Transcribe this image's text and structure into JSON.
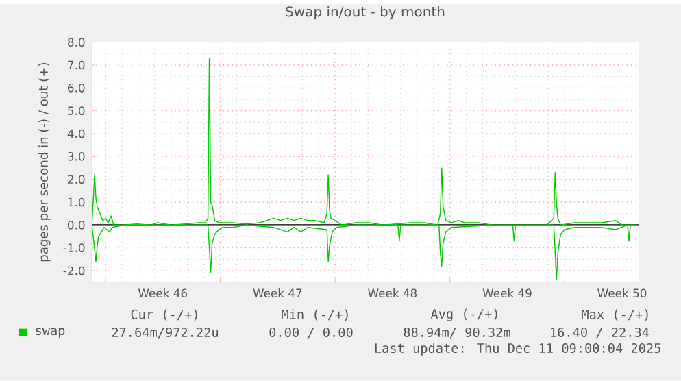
{
  "chart_data": {
    "type": "line",
    "title": "Swap in/out - by month",
    "ylabel": "pages per second in (-) / out (+)",
    "xlim": [
      "2025-11-09T04:00",
      "2025-12-12T12:00"
    ],
    "ylim": [
      -2.5,
      8.0
    ],
    "xticks": [
      {
        "value": "2025-11-10",
        "label": null
      },
      {
        "value": "2025-11-13T12:00",
        "label": "Week 46"
      },
      {
        "value": "2025-11-17",
        "label": null
      },
      {
        "value": "2025-11-20T12:00",
        "label": "Week 47"
      },
      {
        "value": "2025-11-24",
        "label": null
      },
      {
        "value": "2025-11-27T12:00",
        "label": "Week 48"
      },
      {
        "value": "2025-12-01",
        "label": null
      },
      {
        "value": "2025-12-04T12:00",
        "label": "Week 49"
      },
      {
        "value": "2025-12-08",
        "label": null
      },
      {
        "value": "2025-12-11T12:00",
        "label": "Week 50"
      }
    ],
    "yticks": [
      {
        "value": -2,
        "label": "-2.0"
      },
      {
        "value": -1,
        "label": "-1.0"
      },
      {
        "value": 0,
        "label": "0.0"
      },
      {
        "value": 1,
        "label": "1.0"
      },
      {
        "value": 2,
        "label": "2.0"
      },
      {
        "value": 3,
        "label": "3.0"
      },
      {
        "value": 4,
        "label": "4.0"
      },
      {
        "value": 5,
        "label": "5.0"
      },
      {
        "value": 6,
        "label": "6.0"
      },
      {
        "value": 7,
        "label": "7.0"
      },
      {
        "value": 8,
        "label": "8.0"
      }
    ],
    "grid": true,
    "legend": "bottom left",
    "ref_lines": [
      {
        "axis": "y",
        "value": 0,
        "color": "#000000"
      }
    ],
    "series": [
      {
        "name": "swap",
        "color": "#00cc00",
        "x": [
          "2025-11-09T04:00",
          "2025-11-09T06:00",
          "2025-11-09T08:00",
          "2025-11-09T10:00",
          "2025-11-09T12:00",
          "2025-11-09T16:00",
          "2025-11-09T20:00",
          "2025-11-10T00:00",
          "2025-11-10T04:00",
          "2025-11-10T08:00",
          "2025-11-10T12:00",
          "2025-11-11T02:00",
          "2025-11-11T22:00",
          "2025-11-12T18:00",
          "2025-11-13T04:00",
          "2025-11-14T00:00",
          "2025-11-14T20:00",
          "2025-11-15T16:00",
          "2025-11-16T02:00",
          "2025-11-16T06:00",
          "2025-11-16T08:00",
          "2025-11-16T10:00",
          "2025-11-16T12:00",
          "2025-11-16T16:00",
          "2025-11-16T22:00",
          "2025-11-17T18:00",
          "2025-11-18T14:00",
          "2025-11-19T10:00",
          "2025-11-20T06:00",
          "2025-11-20T16:00",
          "2025-11-21T02:00",
          "2025-11-21T12:00",
          "2025-11-21T22:00",
          "2025-11-22T08:00",
          "2025-11-22T18:00",
          "2025-11-23T08:00",
          "2025-11-23T12:00",
          "2025-11-23T14:00",
          "2025-11-23T16:00",
          "2025-11-23T18:00",
          "2025-11-24T00:00",
          "2025-11-24T10:00",
          "2025-11-25T06:00",
          "2025-11-26T02:00",
          "2025-11-26T22:00",
          "2025-11-27T18:00",
          "2025-11-28T14:00",
          "2025-11-29T10:00",
          "2025-11-30T06:00",
          "2025-11-30T10:00",
          "2025-11-30T12:00",
          "2025-11-30T14:00",
          "2025-11-30T18:00",
          "2025-12-01T02:00",
          "2025-12-01T12:00",
          "2025-12-01T22:00",
          "2025-12-02T18:00",
          "2025-12-03T14:00",
          "2025-12-04T10:00",
          "2025-12-05T06:00",
          "2025-12-06T02:00",
          "2025-12-06T22:00",
          "2025-12-07T08:00",
          "2025-12-07T10:00",
          "2025-12-07T12:00",
          "2025-12-07T14:00",
          "2025-12-07T18:00",
          "2025-12-08T14:00",
          "2025-12-09T10:00",
          "2025-12-10T06:00",
          "2025-12-11T02:00",
          "2025-12-11T12:00",
          "2025-12-11T22:00",
          "2025-12-12T08:00",
          null,
          "2025-11-09T04:00",
          "2025-11-09T08:00",
          "2025-11-09T10:00",
          "2025-11-09T12:00",
          "2025-11-09T14:00",
          "2025-11-09T18:00",
          "2025-11-09T22:00",
          "2025-11-10T02:00",
          "2025-11-10T06:00",
          "2025-11-10T10:00",
          "2025-11-11T02:00",
          "2025-11-16T06:00",
          "2025-11-16T08:00",
          "2025-11-16T10:00",
          "2025-11-16T12:00",
          "2025-11-16T16:00",
          "2025-11-16T22:00",
          "2025-11-17T04:00",
          "2025-11-17T18:00",
          "2025-11-18T14:00",
          "2025-11-20T06:00",
          "2025-11-21T02:00",
          "2025-11-21T12:00",
          "2025-11-21T22:00",
          "2025-11-22T08:00",
          "2025-11-23T12:00",
          "2025-11-23T14:00",
          "2025-11-23T16:00",
          "2025-11-23T20:00",
          "2025-11-24T02:00",
          "2025-11-25T06:00",
          "2025-11-27T20:00",
          "2025-11-27T22:00",
          "2025-11-28T00:00",
          "2025-11-30T08:00",
          "2025-11-30T10:00",
          "2025-11-30T12:00",
          "2025-11-30T14:00",
          "2025-11-30T18:00",
          "2025-12-01T02:00",
          "2025-12-03T14:00",
          "2025-12-04T20:00",
          "2025-12-04T22:00",
          "2025-12-05T00:00",
          "2025-12-07T08:00",
          "2025-12-07T10:00",
          "2025-12-07T12:00",
          "2025-12-07T14:00",
          "2025-12-07T18:00",
          "2025-12-08T00:00",
          "2025-12-08T14:00",
          "2025-12-10T06:00",
          "2025-12-11T02:00",
          "2025-12-11T20:00",
          "2025-12-11T22:00",
          "2025-12-12T00:00",
          "2025-12-12T08:00"
        ],
        "values": [
          0,
          1.0,
          2.2,
          1.2,
          0.8,
          0.5,
          0.2,
          0.3,
          0.1,
          0.4,
          0,
          0,
          0.05,
          0,
          0.1,
          0,
          0.05,
          0.1,
          0.1,
          0.3,
          7.3,
          1.0,
          0.9,
          0.2,
          0.1,
          0.1,
          0.05,
          0.1,
          0.3,
          0.2,
          0.3,
          0.2,
          0.3,
          0.2,
          0.2,
          0.1,
          0.5,
          2.2,
          0.6,
          0.3,
          0.2,
          0,
          0.1,
          0.1,
          0,
          0.05,
          0.1,
          0.1,
          0,
          0.5,
          2.5,
          0.8,
          0.2,
          0.1,
          0.2,
          0.1,
          0.1,
          0,
          0,
          0,
          0,
          0,
          0.3,
          2.3,
          0.9,
          0.3,
          0,
          0.1,
          0.1,
          0.1,
          0.2,
          0,
          0,
          0,
          null,
          0,
          -1.0,
          -1.6,
          -0.9,
          -0.5,
          -0.3,
          -0.1,
          -0.2,
          -0.3,
          -0.1,
          0,
          0,
          -1.0,
          -2.1,
          -0.8,
          -0.4,
          -0.2,
          -0.1,
          -0.1,
          0,
          -0.1,
          -0.3,
          -0.1,
          -0.3,
          -0.1,
          -0.2,
          -1.6,
          -0.9,
          -0.3,
          -0.1,
          0,
          0,
          -0.7,
          0,
          0,
          -1.2,
          -1.8,
          -0.8,
          -0.3,
          -0.1,
          0,
          0,
          -0.7,
          0,
          0,
          -1.2,
          -2.4,
          -1.2,
          -0.4,
          -0.2,
          -0.1,
          -0.1,
          -0.2,
          0,
          -0.7,
          0,
          0
        ]
      }
    ],
    "annotations": [
      "Cur (-/+)",
      "Min (-/+)",
      "Avg (-/+)",
      "Max (-/+)",
      "27.64m/972.22u",
      "0.00 /  0.00",
      "88.94m/ 90.32m",
      "16.40 / 22.34",
      "Last update: Thu Dec 11 09:00:04 2025"
    ]
  }
}
